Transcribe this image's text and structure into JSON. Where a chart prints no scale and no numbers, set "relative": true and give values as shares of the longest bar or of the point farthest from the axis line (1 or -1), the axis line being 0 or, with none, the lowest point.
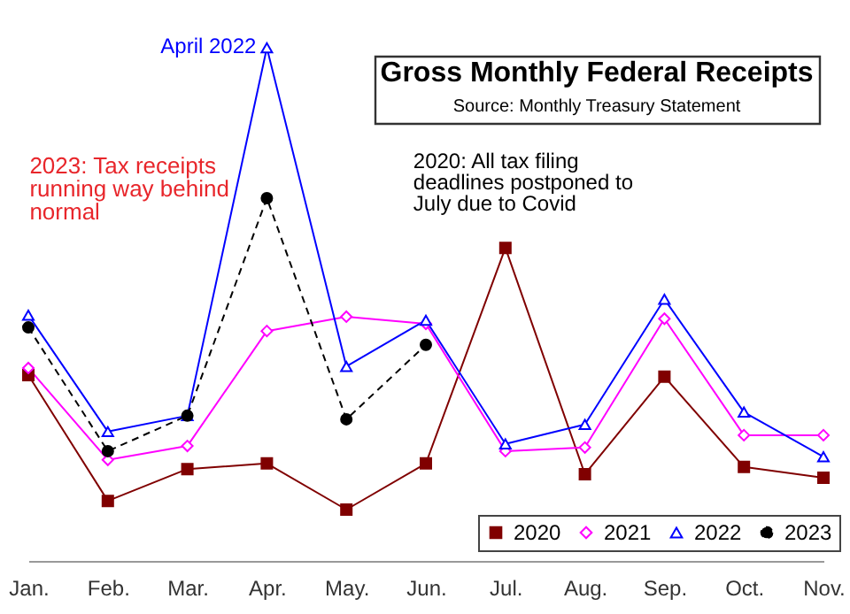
{
  "chart_data": {
    "type": "line",
    "title": "Gross Monthly Federal Receipts",
    "subtitle": "Source: Monthly Treasury Statement",
    "relative": true,
    "legend": "bottom right",
    "grid": false,
    "categories": [
      "Jan.",
      "Feb.",
      "Mar.",
      "Apr.",
      "May.",
      "Jun.",
      "Jul.",
      "Aug.",
      "Sep.",
      "Oct.",
      "Nov."
    ],
    "series": [
      {
        "name": "2020",
        "color": "#800000",
        "marker": "square",
        "line_style": "solid",
        "values": [
          0.362,
          0.117,
          0.179,
          0.19,
          0.1,
          0.19,
          0.61,
          0.169,
          0.359,
          0.183,
          0.162
        ]
      },
      {
        "name": "2021",
        "color": "#ff00ff",
        "marker": "diamond",
        "line_style": "solid",
        "values": [
          0.376,
          0.197,
          0.224,
          0.448,
          0.476,
          0.462,
          0.214,
          0.221,
          0.472,
          0.245,
          0.245
        ]
      },
      {
        "name": "2022",
        "color": "#0000ff",
        "marker": "triangle",
        "line_style": "solid",
        "values": [
          0.479,
          0.252,
          0.283,
          1,
          0.379,
          0.469,
          0.228,
          0.266,
          0.51,
          0.29,
          0.203
        ]
      },
      {
        "name": "2023",
        "color": "#000000",
        "marker": "circle",
        "line_style": "dashed",
        "values": [
          0.455,
          0.214,
          0.283,
          0.707,
          0.276,
          0.421,
          null,
          null,
          null,
          null,
          null
        ]
      }
    ],
    "annotations": [
      {
        "text": "April 2022",
        "x": "Apr.",
        "y": 1
      },
      {
        "text": "2023: Tax receipts running way behind normal",
        "x": "Apr.",
        "y": 0.707
      },
      {
        "text": "2020: All tax filing deadlines postponed to July due to Covid",
        "x": "Jul.",
        "y": 0.61
      }
    ]
  }
}
